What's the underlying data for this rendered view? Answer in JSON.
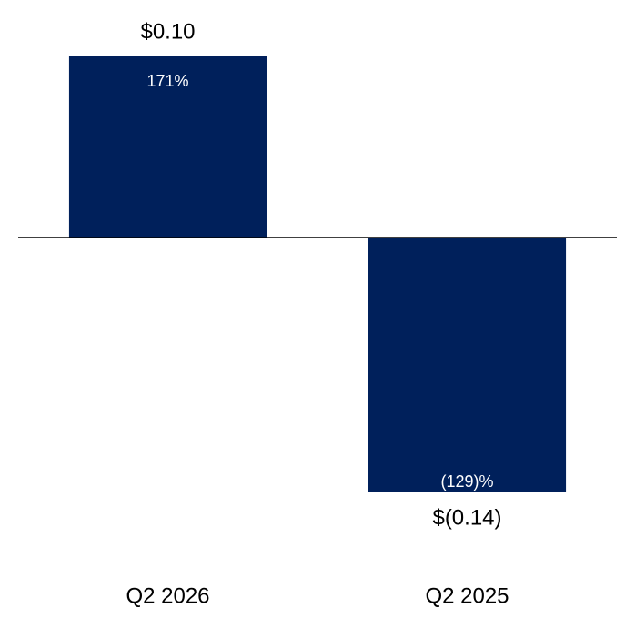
{
  "chart_data": {
    "type": "bar",
    "categories": [
      "Q2 2026",
      "Q2 2025"
    ],
    "values": [
      0.1,
      -0.14
    ],
    "value_labels": [
      "$0.10",
      "$(0.14)"
    ],
    "annotations": [
      "171%",
      "(129)%"
    ],
    "color": "#00205b",
    "ylim": [
      -0.16,
      0.12
    ]
  }
}
